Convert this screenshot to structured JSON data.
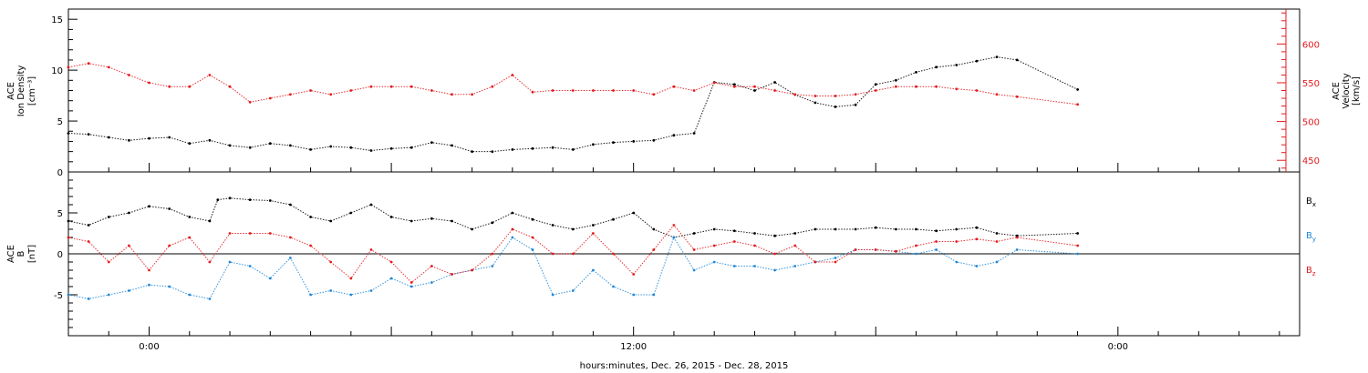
{
  "chart_data": [
    {
      "type": "scatter",
      "panel": "top",
      "ylabel_left": [
        "ACE",
        "Ion Density",
        "[cm⁻³]"
      ],
      "ylabel_right": [
        "ACE",
        "Velocity",
        "[km/s]"
      ],
      "ylim_left": [
        0,
        16
      ],
      "yticks_left": [
        0,
        5,
        10,
        15
      ],
      "ylim_right": [
        435,
        645
      ],
      "yticks_right": [
        450,
        500,
        550,
        600
      ],
      "colors": {
        "density": "#000000",
        "velocity": "#e41a1c"
      },
      "series": [
        {
          "name": "density",
          "axis": "left",
          "points": [
            [
              -2.0,
              3.8
            ],
            [
              -1.5,
              3.7
            ],
            [
              -1.0,
              3.4
            ],
            [
              -0.5,
              3.1
            ],
            [
              0.0,
              3.3
            ],
            [
              0.5,
              3.4
            ],
            [
              1.0,
              2.8
            ],
            [
              1.5,
              3.1
            ],
            [
              2.0,
              2.6
            ],
            [
              2.5,
              2.4
            ],
            [
              3.0,
              2.8
            ],
            [
              3.5,
              2.6
            ],
            [
              4.0,
              2.2
            ],
            [
              4.5,
              2.5
            ],
            [
              5.0,
              2.4
            ],
            [
              5.5,
              2.1
            ],
            [
              6.0,
              2.3
            ],
            [
              6.5,
              2.4
            ],
            [
              7.0,
              2.9
            ],
            [
              7.5,
              2.6
            ],
            [
              8.0,
              2.0
            ],
            [
              8.5,
              2.0
            ],
            [
              9.0,
              2.2
            ],
            [
              9.5,
              2.3
            ],
            [
              10.0,
              2.4
            ],
            [
              10.5,
              2.2
            ],
            [
              11.0,
              2.7
            ],
            [
              11.5,
              2.9
            ],
            [
              12.0,
              3.0
            ],
            [
              12.5,
              3.1
            ],
            [
              13.0,
              3.6
            ],
            [
              13.5,
              3.8
            ],
            [
              14.0,
              8.8
            ],
            [
              14.5,
              8.6
            ],
            [
              15.0,
              8.0
            ],
            [
              15.5,
              8.8
            ],
            [
              16.0,
              7.6
            ],
            [
              16.5,
              6.8
            ],
            [
              17.0,
              6.4
            ],
            [
              17.5,
              6.6
            ],
            [
              18.0,
              8.6
            ],
            [
              18.5,
              9.0
            ],
            [
              19.0,
              9.8
            ],
            [
              19.5,
              10.3
            ],
            [
              20.0,
              10.5
            ],
            [
              20.5,
              10.9
            ],
            [
              21.0,
              11.3
            ],
            [
              21.5,
              11.0
            ],
            [
              23.0,
              8.1
            ]
          ]
        },
        {
          "name": "velocity",
          "axis": "right",
          "points": [
            [
              -2.0,
              570
            ],
            [
              -1.5,
              575
            ],
            [
              -1.0,
              570
            ],
            [
              -0.5,
              560
            ],
            [
              0.0,
              550
            ],
            [
              0.5,
              545
            ],
            [
              1.0,
              545
            ],
            [
              1.5,
              560
            ],
            [
              2.0,
              545
            ],
            [
              2.5,
              525
            ],
            [
              3.0,
              530
            ],
            [
              3.5,
              535
            ],
            [
              4.0,
              540
            ],
            [
              4.5,
              535
            ],
            [
              5.0,
              540
            ],
            [
              5.5,
              545
            ],
            [
              6.0,
              545
            ],
            [
              6.5,
              545
            ],
            [
              7.0,
              540
            ],
            [
              7.5,
              535
            ],
            [
              8.0,
              535
            ],
            [
              8.5,
              545
            ],
            [
              9.0,
              560
            ],
            [
              9.5,
              538
            ],
            [
              10.0,
              540
            ],
            [
              10.5,
              540
            ],
            [
              11.0,
              540
            ],
            [
              11.5,
              540
            ],
            [
              12.0,
              540
            ],
            [
              12.5,
              535
            ],
            [
              13.0,
              545
            ],
            [
              13.5,
              540
            ],
            [
              14.0,
              550
            ],
            [
              14.5,
              545
            ],
            [
              15.0,
              545
            ],
            [
              15.5,
              540
            ],
            [
              16.0,
              535
            ],
            [
              16.5,
              533
            ],
            [
              17.0,
              533
            ],
            [
              17.5,
              535
            ],
            [
              18.0,
              540
            ],
            [
              18.5,
              545
            ],
            [
              19.0,
              545
            ],
            [
              19.5,
              545
            ],
            [
              20.0,
              542
            ],
            [
              20.5,
              540
            ],
            [
              21.0,
              535
            ],
            [
              21.5,
              532
            ],
            [
              23.0,
              522
            ]
          ]
        }
      ]
    },
    {
      "type": "scatter",
      "panel": "bottom",
      "ylabel_left": [
        "ACE",
        "B",
        "[nT]"
      ],
      "ylim": [
        -10,
        10
      ],
      "yticks": [
        -5,
        0,
        5
      ],
      "legend": [
        "B_x",
        "B_y",
        "B_z"
      ],
      "legend_position": "right",
      "colors": {
        "Bx": "#000000",
        "By": "#1f87d6",
        "Bz": "#e41a1c"
      },
      "series": [
        {
          "name": "Bx",
          "points": [
            [
              -2.0,
              4.0
            ],
            [
              -1.5,
              3.5
            ],
            [
              -1.0,
              4.5
            ],
            [
              -0.5,
              5.0
            ],
            [
              0.0,
              5.8
            ],
            [
              0.5,
              5.5
            ],
            [
              1.0,
              4.5
            ],
            [
              1.5,
              4.0
            ],
            [
              1.7,
              6.6
            ],
            [
              2.0,
              6.8
            ],
            [
              2.5,
              6.6
            ],
            [
              3.0,
              6.5
            ],
            [
              3.5,
              6.0
            ],
            [
              4.0,
              4.5
            ],
            [
              4.5,
              4.0
            ],
            [
              5.0,
              5.0
            ],
            [
              5.5,
              6.0
            ],
            [
              6.0,
              4.5
            ],
            [
              6.5,
              4.0
            ],
            [
              7.0,
              4.3
            ],
            [
              7.5,
              4.0
            ],
            [
              8.0,
              3.0
            ],
            [
              8.5,
              3.8
            ],
            [
              9.0,
              5.0
            ],
            [
              9.5,
              4.2
            ],
            [
              10.0,
              3.5
            ],
            [
              10.5,
              3.0
            ],
            [
              11.0,
              3.5
            ],
            [
              11.5,
              4.2
            ],
            [
              12.0,
              5.0
            ],
            [
              12.5,
              3.0
            ],
            [
              13.0,
              2.0
            ],
            [
              13.5,
              2.5
            ],
            [
              14.0,
              3.0
            ],
            [
              14.5,
              2.8
            ],
            [
              15.0,
              2.5
            ],
            [
              15.5,
              2.2
            ],
            [
              16.0,
              2.5
            ],
            [
              16.5,
              3.0
            ],
            [
              17.0,
              3.0
            ],
            [
              17.5,
              3.0
            ],
            [
              18.0,
              3.2
            ],
            [
              18.5,
              3.0
            ],
            [
              19.0,
              3.0
            ],
            [
              19.5,
              2.8
            ],
            [
              20.0,
              3.0
            ],
            [
              20.5,
              3.2
            ],
            [
              21.0,
              2.5
            ],
            [
              21.5,
              2.2
            ],
            [
              23.0,
              2.5
            ]
          ]
        },
        {
          "name": "By",
          "points": [
            [
              -2.0,
              -5.0
            ],
            [
              -1.5,
              -5.5
            ],
            [
              -1.0,
              -5.0
            ],
            [
              -0.5,
              -4.5
            ],
            [
              0.0,
              -3.8
            ],
            [
              0.5,
              -4.0
            ],
            [
              1.0,
              -5.0
            ],
            [
              1.5,
              -5.5
            ],
            [
              2.0,
              -1.0
            ],
            [
              2.5,
              -1.5
            ],
            [
              3.0,
              -3.0
            ],
            [
              3.5,
              -0.5
            ],
            [
              4.0,
              -5.0
            ],
            [
              4.5,
              -4.5
            ],
            [
              5.0,
              -5.0
            ],
            [
              5.5,
              -4.5
            ],
            [
              6.0,
              -3.0
            ],
            [
              6.5,
              -4.0
            ],
            [
              7.0,
              -3.5
            ],
            [
              7.5,
              -2.5
            ],
            [
              8.0,
              -2.0
            ],
            [
              8.5,
              -1.5
            ],
            [
              9.0,
              2.0
            ],
            [
              9.5,
              0.5
            ],
            [
              10.0,
              -5.0
            ],
            [
              10.5,
              -4.5
            ],
            [
              11.0,
              -2.0
            ],
            [
              11.5,
              -4.0
            ],
            [
              12.0,
              -5.0
            ],
            [
              12.5,
              -5.0
            ],
            [
              13.0,
              2.0
            ],
            [
              13.5,
              -2.0
            ],
            [
              14.0,
              -1.0
            ],
            [
              14.5,
              -1.5
            ],
            [
              15.0,
              -1.5
            ],
            [
              15.5,
              -2.0
            ],
            [
              16.0,
              -1.5
            ],
            [
              16.5,
              -1.0
            ],
            [
              17.0,
              -0.5
            ],
            [
              17.5,
              0.5
            ],
            [
              18.0,
              0.5
            ],
            [
              18.5,
              0.3
            ],
            [
              19.0,
              0.0
            ],
            [
              19.5,
              0.5
            ],
            [
              20.0,
              -1.0
            ],
            [
              20.5,
              -1.5
            ],
            [
              21.0,
              -1.0
            ],
            [
              21.5,
              0.5
            ],
            [
              23.0,
              0.0
            ]
          ]
        },
        {
          "name": "Bz",
          "points": [
            [
              -2.0,
              2.0
            ],
            [
              -1.5,
              1.5
            ],
            [
              -1.0,
              -1.0
            ],
            [
              -0.5,
              1.0
            ],
            [
              0.0,
              -2.0
            ],
            [
              0.5,
              1.0
            ],
            [
              1.0,
              2.0
            ],
            [
              1.5,
              -1.0
            ],
            [
              2.0,
              2.5
            ],
            [
              2.5,
              2.5
            ],
            [
              3.0,
              2.5
            ],
            [
              3.5,
              2.0
            ],
            [
              4.0,
              1.0
            ],
            [
              4.5,
              -1.0
            ],
            [
              5.0,
              -3.0
            ],
            [
              5.5,
              0.5
            ],
            [
              6.0,
              -1.0
            ],
            [
              6.5,
              -3.5
            ],
            [
              7.0,
              -1.5
            ],
            [
              7.5,
              -2.5
            ],
            [
              8.0,
              -2.0
            ],
            [
              8.5,
              0.0
            ],
            [
              9.0,
              3.0
            ],
            [
              9.5,
              2.0
            ],
            [
              10.0,
              0.0
            ],
            [
              10.5,
              0.0
            ],
            [
              11.0,
              2.5
            ],
            [
              11.5,
              0.0
            ],
            [
              12.0,
              -2.5
            ],
            [
              12.5,
              0.5
            ],
            [
              13.0,
              3.5
            ],
            [
              13.5,
              0.5
            ],
            [
              14.0,
              1.0
            ],
            [
              14.5,
              1.5
            ],
            [
              15.0,
              1.0
            ],
            [
              15.5,
              0.0
            ],
            [
              16.0,
              1.0
            ],
            [
              16.5,
              -1.0
            ],
            [
              17.0,
              -1.0
            ],
            [
              17.5,
              0.5
            ],
            [
              18.0,
              0.5
            ],
            [
              18.5,
              0.3
            ],
            [
              19.0,
              1.0
            ],
            [
              19.5,
              1.5
            ],
            [
              20.0,
              1.5
            ],
            [
              20.5,
              1.8
            ],
            [
              21.0,
              1.5
            ],
            [
              21.5,
              2.0
            ],
            [
              23.0,
              1.0
            ]
          ]
        }
      ]
    }
  ],
  "x_axis": {
    "xlim_hours": [
      -2,
      28.5
    ],
    "tick_labels": [
      {
        "hour": 0,
        "label": "0:00"
      },
      {
        "hour": 12,
        "label": "12:00"
      },
      {
        "hour": 24,
        "label": "0:00"
      }
    ],
    "xlabel": "hours:minutes, Dec. 26, 2015 - Dec. 28, 2015"
  },
  "legend": {
    "bx": {
      "main": "B",
      "sub": "x"
    },
    "by": {
      "main": "B",
      "sub": "y"
    },
    "bz": {
      "main": "B",
      "sub": "z"
    }
  }
}
